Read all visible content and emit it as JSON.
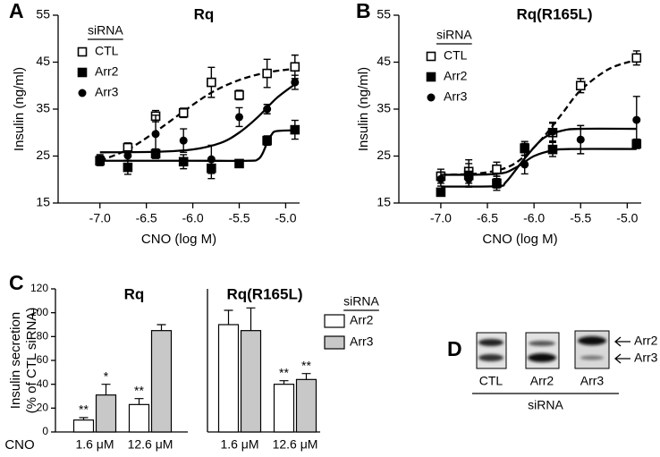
{
  "chart_data": [
    {
      "type": "scatter",
      "panel": "A",
      "title": "Rq",
      "xlabel": "CNO (log M)",
      "ylabel": "Insulin (ng/ml)",
      "legend_title": "siRNA",
      "x": [
        -7.0,
        -6.7,
        -6.4,
        -6.1,
        -5.8,
        -5.5,
        -5.2,
        -4.9
      ],
      "xlim": [
        -7.45,
        -4.85
      ],
      "ylim": [
        15,
        55
      ],
      "xticks": [
        {
          "value": -7,
          "label": "-7.0"
        },
        -6.5,
        {
          "value": -6,
          "label": "-6.0"
        },
        -5.5,
        {
          "value": -5,
          "label": "-5.0"
        }
      ],
      "yticks": [
        15,
        25,
        35,
        45,
        55
      ],
      "series": [
        {
          "name": "CTL",
          "marker": "open-square",
          "color": "#000000",
          "values": [
            24,
            26.8,
            33.5,
            34.2,
            40.7,
            38,
            42.6,
            44
          ],
          "errors": [
            1,
            1,
            1.2,
            1,
            3.2,
            1,
            3,
            2.5
          ],
          "fit": {
            "x": [
              -7.0,
              -6.7,
              -6.4,
              -6.1,
              -5.8,
              -5.5,
              -5.2,
              -4.9
            ],
            "values": [
              24,
              26.4,
              30.2,
              34.5,
              38.5,
              41.2,
              42.8,
              43.6
            ],
            "dash": true
          }
        },
        {
          "name": "Arr2",
          "marker": "filled-square",
          "color": "#000000",
          "values": [
            24,
            22.6,
            25.5,
            23.8,
            22.4,
            23.4,
            28.3,
            30.6
          ],
          "errors": [
            1,
            1.5,
            1,
            1.5,
            2.2,
            0.8,
            1,
            2
          ],
          "fit": {
            "x": [
              -7.0,
              -6.0,
              -5.4,
              -5.3,
              -5.25,
              -5.2,
              -5.15,
              -5.1,
              -4.9
            ],
            "values": [
              24,
              24,
              24,
              24.3,
              25.5,
              27.8,
              29.6,
              30.3,
              30.5
            ],
            "dash": false
          }
        },
        {
          "name": "Arr3",
          "marker": "filled-circle",
          "color": "#000000",
          "values": [
            24.3,
            25.1,
            29.7,
            28.3,
            24.3,
            33.3,
            35,
            40.7
          ],
          "errors": [
            1,
            1,
            4,
            2.5,
            3,
            2,
            1,
            1.5
          ],
          "fit": {
            "x": [
              -7.0,
              -6.4,
              -6.0,
              -5.7,
              -5.5,
              -5.3,
              -5.1,
              -4.9
            ],
            "values": [
              25.8,
              25.9,
              26.4,
              27.8,
              30,
              33.3,
              37.3,
              40.3
            ],
            "dash": false
          }
        }
      ]
    },
    {
      "type": "scatter",
      "panel": "B",
      "title": "Rq(R165L)",
      "xlabel": "CNO (log M)",
      "ylabel": "Insulin (ng/ml)",
      "legend_title": "siRNA",
      "x": [
        -7.0,
        -6.7,
        -6.4,
        -6.1,
        -5.8,
        -5.5,
        -5.2,
        -4.9
      ],
      "xlim": [
        -7.45,
        -4.85
      ],
      "ylim": [
        15,
        55
      ],
      "xticks": [
        {
          "value": -7,
          "label": "-7.0"
        },
        -6.5,
        {
          "value": -6,
          "label": "-6.0"
        },
        -5.5,
        {
          "value": -5,
          "label": "-5.0"
        }
      ],
      "yticks": [
        15,
        25,
        35,
        45,
        55
      ],
      "series": [
        {
          "name": "CTL",
          "marker": "open-square",
          "color": "#000000",
          "values": [
            20.7,
            21.7,
            22.2,
            26.6,
            30,
            40,
            null,
            45.9
          ],
          "errors": [
            1.5,
            2.5,
            1.5,
            1.5,
            2,
            1.5,
            null,
            1.5
          ],
          "fit": {
            "x": [
              -7.0,
              -6.6,
              -6.3,
              -6.1,
              -5.9,
              -5.7,
              -5.5,
              -5.2,
              -4.9
            ],
            "values": [
              21,
              21.3,
              22.5,
              25,
              29,
              34,
              39,
              43.5,
              45.5
            ],
            "dash": true
          }
        },
        {
          "name": "Arr2",
          "marker": "filled-square",
          "color": "#000000",
          "values": [
            17.3,
            20.9,
            19.2,
            26.7,
            26.4,
            null,
            null,
            27.6
          ],
          "errors": [
            0.8,
            2.5,
            1.5,
            1,
            1.5,
            null,
            null,
            1
          ],
          "fit": {
            "x": [
              -7.0,
              -6.4,
              -6.2,
              -6.0,
              -5.8,
              -5.6,
              -4.9
            ],
            "values": [
              21,
              21.2,
              22.5,
              25,
              26.2,
              26.5,
              26.5
            ],
            "dash": false
          }
        },
        {
          "name": "Arr3",
          "marker": "filled-circle",
          "color": "#000000",
          "values": [
            20.1,
            20.1,
            19.2,
            23.2,
            30.2,
            28.5,
            null,
            32.7
          ],
          "errors": [
            1.5,
            1.5,
            1,
            2,
            2,
            3,
            null,
            5
          ],
          "fit": {
            "x": [
              -7.0,
              -6.4,
              -6.3,
              -6.1,
              -5.9,
              -5.7,
              -5.5,
              -4.9
            ],
            "values": [
              18.5,
              18.6,
              19.5,
              24.5,
              28.8,
              30.4,
              30.8,
              30.8
            ],
            "dash": false
          }
        }
      ]
    },
    {
      "type": "grouped-bar",
      "panel": "C",
      "ylabel": [
        "Insulin secretion",
        "(% of CTL siRNA)"
      ],
      "xlabel": "CNO",
      "legend_title": "siRNA",
      "ylim": [
        0,
        120
      ],
      "yticks": [
        0,
        20,
        40,
        60,
        80,
        100,
        120
      ],
      "series": [
        {
          "name": "Arr2",
          "color": "#ffffff"
        },
        {
          "name": "Arr3",
          "color": "#c8c8c8"
        }
      ],
      "groups": [
        {
          "title": "Rq",
          "categories": [
            "1.6 μM",
            "12.6 μM"
          ],
          "values": [
            [
              10,
              23
            ],
            [
              31,
              85
            ]
          ],
          "errors": [
            [
              2,
              5
            ],
            [
              9,
              5
            ]
          ],
          "annotations": [
            [
              "**",
              "**"
            ],
            [
              "*",
              null
            ]
          ]
        },
        {
          "title": "Rq(R165L)",
          "categories": [
            "1.6 μM",
            "12.6 μM"
          ],
          "values": [
            [
              90,
              40
            ],
            [
              85,
              44
            ]
          ],
          "errors": [
            [
              12,
              3
            ],
            [
              19,
              5
            ]
          ],
          "annotations": [
            [
              null,
              "**"
            ],
            [
              null,
              "**"
            ]
          ]
        }
      ]
    }
  ],
  "blot": {
    "panel": "D",
    "lanes": [
      "CTL",
      "Arr2",
      "Arr3"
    ],
    "group_label": "siRNA",
    "bands": [
      "Arr2",
      "Arr3"
    ]
  }
}
